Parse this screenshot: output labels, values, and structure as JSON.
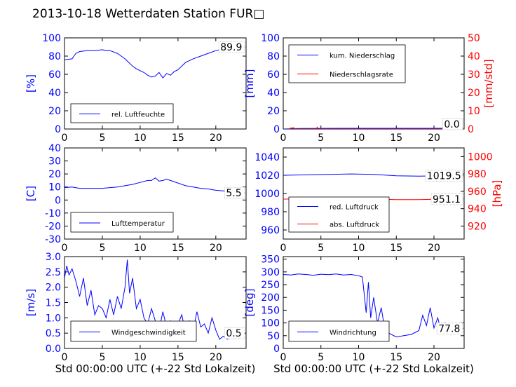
{
  "title": "2013-10-18 Wetterdaten Station FUR□",
  "xlabel": "Std 00:00:00 UTC (+-22 Std Lokalzeit)",
  "colors": {
    "left_axis": "#0000ff",
    "right_axis": "#ff0000",
    "line_primary": "#0000ff",
    "line_secondary": "#ff0000",
    "value_box": "#c8c8c8"
  },
  "chart_data": [
    {
      "type": "line",
      "ylabel": "[%]",
      "xlim": [
        0,
        24
      ],
      "ylim": [
        0,
        100
      ],
      "xticks": [
        0,
        5,
        10,
        15,
        20
      ],
      "yticks": [
        0,
        20,
        40,
        60,
        80,
        100
      ],
      "legend_location": "lower-left",
      "last_value_label": "89.9",
      "series": [
        {
          "name": "rel. Luftfeuchte",
          "axis": "left",
          "x": [
            0,
            1,
            1.5,
            2,
            3,
            4,
            5,
            5.5,
            6,
            7,
            7.5,
            8,
            8.5,
            9,
            9.5,
            10,
            10.5,
            11,
            11.5,
            12,
            12.5,
            13,
            13.5,
            14,
            14.5,
            15,
            16,
            17,
            18,
            19,
            20,
            21,
            22,
            23,
            23.9
          ],
          "y": [
            76,
            77,
            83,
            85,
            86,
            86,
            87,
            86,
            86,
            83,
            80,
            77,
            73,
            69,
            66,
            64,
            62,
            59,
            57,
            58,
            62,
            56,
            61,
            59,
            63,
            65,
            73,
            77,
            80,
            83,
            86,
            88,
            89,
            90,
            90
          ]
        }
      ]
    },
    {
      "type": "line",
      "ylabel": "[mm]",
      "ylabel_right": "[mm/std]",
      "xlim": [
        0,
        24
      ],
      "ylim": [
        0,
        100
      ],
      "ylim_right": [
        0,
        50
      ],
      "xticks": [
        0,
        5,
        10,
        15,
        20
      ],
      "yticks": [
        0,
        20,
        40,
        60,
        80,
        100
      ],
      "yticks_right": [
        0,
        10,
        20,
        30,
        40,
        50
      ],
      "legend_location": "upper-left",
      "last_value_label": "0.0",
      "last_value_label_right": "0.0",
      "series": [
        {
          "name": "kum. Niederschlag",
          "axis": "left",
          "x": [
            0,
            1,
            2,
            4.5,
            8,
            12,
            16,
            20,
            23.9
          ],
          "y": [
            0,
            0.2,
            0.5,
            0.7,
            0.8,
            0.8,
            0.8,
            0.8,
            0.8
          ]
        },
        {
          "name": "Niederschlagsrate",
          "axis": "right",
          "x": [
            0.8,
            1.0,
            1.1,
            1.2,
            1.3,
            1.4,
            1.5,
            2.0,
            3.0,
            4.4,
            4.5,
            4.6,
            5.0,
            24
          ],
          "y": [
            0,
            0.6,
            0.4,
            0.7,
            0.3,
            0.8,
            0,
            0,
            0,
            0,
            1.0,
            0,
            0,
            0
          ]
        }
      ]
    },
    {
      "type": "line",
      "ylabel": "[C]",
      "xlim": [
        0,
        24
      ],
      "ylim": [
        -30,
        40
      ],
      "xticks": [
        0,
        5,
        10,
        15,
        20
      ],
      "yticks": [
        -30,
        -20,
        -10,
        0,
        10,
        20,
        30,
        40
      ],
      "legend_location": "lower-left",
      "last_value_label": "5.5",
      "series": [
        {
          "name": "Lufttemperatur",
          "axis": "left",
          "x": [
            0,
            1,
            2,
            3,
            4,
            5,
            6,
            7,
            8,
            9,
            10,
            11,
            11.5,
            12,
            12.5,
            13,
            13.5,
            14,
            15,
            16,
            17,
            18,
            19,
            20,
            21,
            22,
            23,
            23.9
          ],
          "y": [
            9.5,
            10,
            9,
            9,
            9,
            9,
            9.5,
            10,
            11,
            12,
            13.5,
            15,
            15,
            17,
            14.5,
            15,
            16,
            15,
            13,
            11,
            10,
            9,
            8.5,
            7.5,
            7,
            6,
            5.8,
            5.5
          ]
        }
      ]
    },
    {
      "type": "line",
      "ylabel": "[hPa]",
      "ylabel_side": "right",
      "xlim": [
        0,
        24
      ],
      "ylim": [
        950,
        1050
      ],
      "ylim_right": [
        905,
        1010
      ],
      "xticks": [
        0,
        5,
        10,
        15,
        20
      ],
      "yticks": [
        960,
        980,
        1000,
        1020,
        1040
      ],
      "yticks_right": [
        920,
        940,
        960,
        980,
        1000
      ],
      "legend_location": "lower-left",
      "last_value_label": "1019.5",
      "last_value_label_right": "951.1",
      "series": [
        {
          "name": "red. Luftdruck",
          "axis": "left",
          "x": [
            0,
            3,
            6,
            9,
            12,
            15,
            18,
            21,
            23.9
          ],
          "y": [
            1020,
            1020.5,
            1021,
            1021.5,
            1021,
            1019.5,
            1019,
            1019.5,
            1019.5
          ]
        },
        {
          "name": "abs. Luftdruck",
          "axis": "right",
          "x": [
            0,
            3,
            6,
            9,
            12,
            15,
            18,
            21,
            23.9
          ],
          "y": [
            951,
            951.3,
            951.5,
            951.5,
            951,
            950.5,
            950.5,
            951,
            951.1
          ]
        }
      ]
    },
    {
      "type": "line",
      "ylabel": "[m/s]",
      "xlim": [
        0,
        24
      ],
      "ylim": [
        0,
        3.0
      ],
      "xticks": [
        0,
        5,
        10,
        15,
        20
      ],
      "yticks": [
        0.0,
        0.5,
        1.0,
        1.5,
        2.0,
        2.5,
        3.0
      ],
      "legend_location": "lower-left",
      "last_value_label": "0.5",
      "series": [
        {
          "name": "Windgeschwindigkeit",
          "axis": "left",
          "x": [
            0,
            0.3,
            0.6,
            1,
            1.5,
            2,
            2.5,
            3,
            3.5,
            4,
            4.5,
            5,
            5.5,
            6,
            6.5,
            7,
            7.5,
            8,
            8.3,
            8.6,
            9,
            9.5,
            10,
            10.5,
            11,
            11.5,
            12,
            12.5,
            13,
            13.5,
            14,
            14.5,
            15,
            15.5,
            16,
            16.5,
            17,
            17.5,
            18,
            18.5,
            19,
            19.5,
            20,
            20.5,
            21,
            21.5,
            22,
            22.5,
            23,
            23.5,
            23.9
          ],
          "y": [
            2.3,
            2.7,
            2.4,
            2.6,
            2.2,
            1.7,
            2.3,
            1.4,
            1.9,
            1.1,
            1.4,
            1.3,
            1.0,
            1.6,
            1.1,
            1.7,
            1.3,
            2.0,
            2.9,
            1.8,
            2.3,
            1.3,
            1.6,
            1.0,
            0.8,
            1.3,
            0.9,
            0.6,
            1.2,
            0.7,
            0.9,
            0.5,
            0.8,
            1.1,
            0.5,
            0.9,
            0.6,
            1.2,
            0.7,
            0.8,
            0.5,
            1.0,
            0.6,
            0.3,
            0.4,
            0.3,
            0.35,
            0.5,
            0.4,
            0.45,
            0.5
          ]
        }
      ]
    },
    {
      "type": "line",
      "ylabel": "[deg]",
      "xlim": [
        0,
        24
      ],
      "ylim": [
        0,
        360
      ],
      "xticks": [
        0,
        5,
        10,
        15,
        20
      ],
      "yticks": [
        0,
        50,
        100,
        150,
        200,
        250,
        300,
        350
      ],
      "legend_location": "lower-left",
      "last_value_label": "77.8",
      "series": [
        {
          "name": "Windrichtung",
          "axis": "left",
          "x": [
            0,
            1,
            2,
            3,
            4,
            5,
            6,
            7,
            8,
            9,
            10,
            10.5,
            11,
            11.3,
            11.6,
            12,
            12.5,
            13,
            13.5,
            14,
            15,
            16,
            17,
            18,
            18.5,
            19,
            19.5,
            20,
            20.5,
            21,
            21.5,
            22,
            22.5,
            23,
            23.5,
            23.9
          ],
          "y": [
            290,
            288,
            292,
            290,
            287,
            291,
            289,
            292,
            288,
            290,
            285,
            280,
            140,
            260,
            120,
            200,
            100,
            160,
            70,
            60,
            45,
            50,
            55,
            70,
            130,
            90,
            160,
            80,
            120,
            60,
            100,
            70,
            90,
            75,
            85,
            78
          ]
        }
      ]
    }
  ]
}
